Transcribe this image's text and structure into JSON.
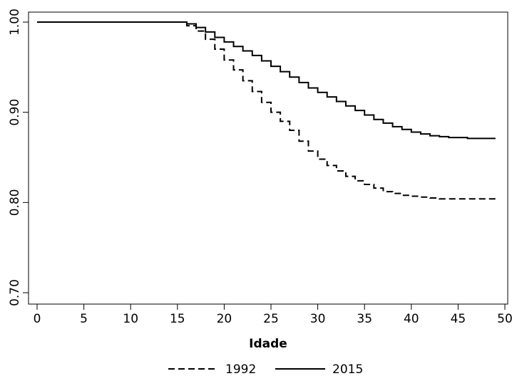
{
  "chart_data": {
    "type": "line",
    "step": true,
    "xlabel": "Idade",
    "ylabel": "",
    "xlim": [
      0,
      50
    ],
    "ylim": [
      0.7,
      1.0
    ],
    "x_ticks": [
      0,
      5,
      10,
      15,
      20,
      25,
      30,
      35,
      40,
      45,
      50
    ],
    "x_tick_labels": [
      "0",
      "5",
      "10",
      "15",
      "20",
      "25",
      "30",
      "35",
      "40",
      "45",
      "50"
    ],
    "y_ticks": [
      0.7,
      0.8,
      0.9,
      1.0
    ],
    "y_tick_labels": [
      "0.70",
      "0.80",
      "0.90",
      "1.00"
    ],
    "grid": false,
    "legend": {
      "position": "bottom"
    },
    "series": [
      {
        "name": "1992",
        "style": "dashed",
        "color": "#000000",
        "x": [
          0,
          15,
          16,
          17,
          18,
          19,
          20,
          21,
          22,
          23,
          24,
          25,
          26,
          27,
          28,
          29,
          30,
          31,
          32,
          33,
          34,
          35,
          36,
          37,
          38,
          39,
          40,
          41,
          42,
          43,
          44,
          45,
          46,
          47,
          48,
          49
        ],
        "y": [
          1.0,
          1.0,
          0.996,
          0.99,
          0.981,
          0.97,
          0.958,
          0.947,
          0.935,
          0.923,
          0.911,
          0.9,
          0.89,
          0.88,
          0.868,
          0.857,
          0.848,
          0.841,
          0.835,
          0.829,
          0.824,
          0.82,
          0.816,
          0.812,
          0.81,
          0.808,
          0.807,
          0.806,
          0.805,
          0.804,
          0.804,
          0.804,
          0.804,
          0.804,
          0.804,
          0.804
        ]
      },
      {
        "name": "2015",
        "style": "solid",
        "color": "#000000",
        "x": [
          0,
          15,
          16,
          17,
          18,
          19,
          20,
          21,
          22,
          23,
          24,
          25,
          26,
          27,
          28,
          29,
          30,
          31,
          32,
          33,
          34,
          35,
          36,
          37,
          38,
          39,
          40,
          41,
          42,
          43,
          44,
          45,
          46,
          47,
          48,
          49
        ],
        "y": [
          1.0,
          1.0,
          0.998,
          0.994,
          0.989,
          0.983,
          0.978,
          0.973,
          0.968,
          0.963,
          0.957,
          0.951,
          0.945,
          0.939,
          0.933,
          0.927,
          0.922,
          0.917,
          0.912,
          0.907,
          0.902,
          0.897,
          0.892,
          0.888,
          0.884,
          0.881,
          0.878,
          0.876,
          0.874,
          0.873,
          0.872,
          0.872,
          0.871,
          0.871,
          0.871,
          0.871
        ]
      }
    ]
  }
}
